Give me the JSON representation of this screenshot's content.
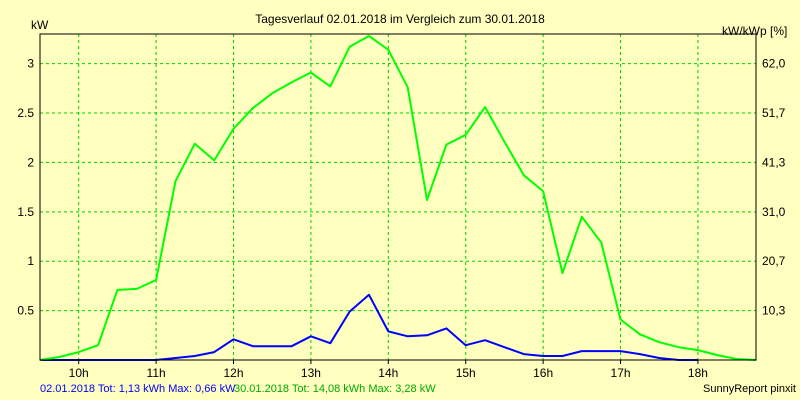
{
  "chart_data": {
    "type": "line",
    "title": "Tagesverlauf 02.01.2018 im Vergleich zum 30.01.2018",
    "ylabel_left": "kW",
    "ylabel_right": "kW/kWp [%]",
    "xlim": [
      9.5,
      18.75
    ],
    "ylim": [
      0,
      3.3
    ],
    "x_ticks": [
      10,
      11,
      12,
      13,
      14,
      15,
      16,
      17,
      18
    ],
    "x_tick_labels": [
      "10h",
      "11h",
      "12h",
      "13h",
      "14h",
      "15h",
      "16h",
      "17h",
      "18h"
    ],
    "y_ticks_left": [
      0.5,
      1,
      1.5,
      2,
      2.5,
      3
    ],
    "y_tick_labels_left": [
      "0.5",
      "1",
      "1.5",
      "2",
      "2.5",
      "3"
    ],
    "y_tick_labels_right": [
      "10,3",
      "20,7",
      "31,0",
      "41,3",
      "51,7",
      "62,0"
    ],
    "grid": true,
    "series": [
      {
        "name": "02.01.2018",
        "color": "#0000ff",
        "x": [
          9.5,
          10.0,
          10.5,
          11.0,
          11.25,
          11.5,
          11.75,
          12.0,
          12.25,
          12.5,
          12.75,
          13.0,
          13.25,
          13.5,
          13.75,
          14.0,
          14.25,
          14.5,
          14.75,
          15.0,
          15.25,
          15.5,
          15.75,
          16.0,
          16.25,
          16.5,
          16.75,
          17.0,
          17.25,
          17.5,
          17.75,
          18.0
        ],
        "y": [
          0.0,
          0.0,
          0.0,
          0.0,
          0.02,
          0.04,
          0.08,
          0.21,
          0.14,
          0.14,
          0.14,
          0.24,
          0.17,
          0.49,
          0.66,
          0.29,
          0.24,
          0.25,
          0.32,
          0.15,
          0.2,
          0.13,
          0.06,
          0.04,
          0.04,
          0.09,
          0.09,
          0.09,
          0.06,
          0.02,
          0.0,
          0.0
        ]
      },
      {
        "name": "30.01.2018",
        "color": "#00ff00",
        "x": [
          9.5,
          9.75,
          10.0,
          10.25,
          10.5,
          10.75,
          11.0,
          11.25,
          11.5,
          11.75,
          12.0,
          12.25,
          12.5,
          12.75,
          13.0,
          13.25,
          13.5,
          13.75,
          14.0,
          14.25,
          14.5,
          14.75,
          15.0,
          15.25,
          15.5,
          15.75,
          16.0,
          16.25,
          16.5,
          16.75,
          17.0,
          17.25,
          17.5,
          17.75,
          18.0,
          18.25,
          18.5,
          18.75
        ],
        "y": [
          0.0,
          0.03,
          0.08,
          0.15,
          0.71,
          0.72,
          0.81,
          1.81,
          2.19,
          2.02,
          2.34,
          2.55,
          2.7,
          2.81,
          2.91,
          2.77,
          3.17,
          3.28,
          3.14,
          2.76,
          1.62,
          2.18,
          2.28,
          2.56,
          2.21,
          1.87,
          1.71,
          0.88,
          1.45,
          1.19,
          0.41,
          0.26,
          0.18,
          0.13,
          0.1,
          0.05,
          0.01,
          0.0
        ]
      }
    ],
    "footer": {
      "series1": "02.01.2018 Tot: 1,13 kWh Max: 0,66 kW",
      "series2": "30.01.2018 Tot: 14,08 kWh Max: 3,28 kW",
      "credit": "SunnyReport pinxit"
    },
    "colors": {
      "background": "#ffffc0",
      "grid": "#00d000",
      "axis": "#000000"
    }
  }
}
